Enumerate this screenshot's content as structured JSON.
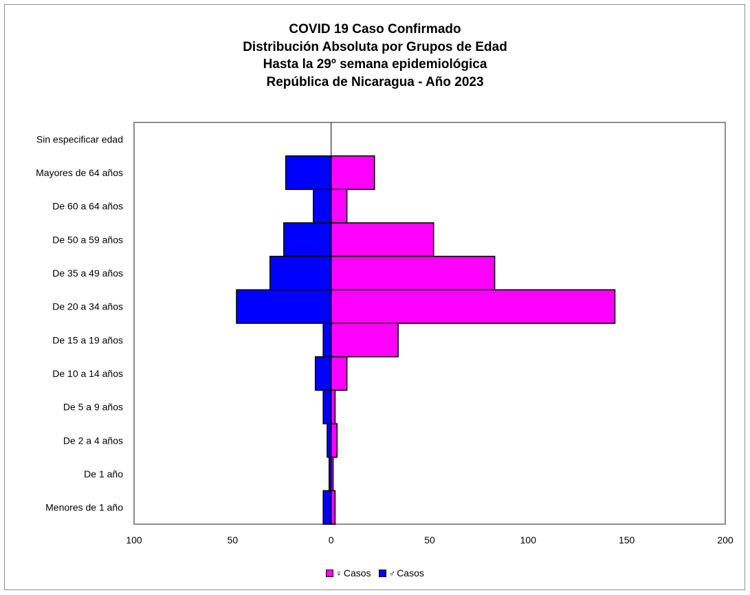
{
  "chart_data": {
    "type": "bar",
    "orientation": "horizontal",
    "title": [
      "COVID 19 Caso Confirmado",
      "Distribución Absoluta por Grupos de Edad",
      "Hasta la 29º semana epidemiológica",
      "República de Nicaragua - Año 2023"
    ],
    "categories": [
      "Sin especificar edad",
      "Mayores de 64 años",
      "De 60 a 64 años",
      "De 50 a 59 años",
      "De 35 a 49 años",
      "De 20 a 34 años",
      "De 15 a 19 años",
      "De 10 a 14 años",
      "De 5 a 9 años",
      "De 2 a 4 años",
      "De 1 año",
      "Menores de 1 año"
    ],
    "series": [
      {
        "name": "Casos",
        "symbol": "♀",
        "color": "#ff00ff",
        "side": "right",
        "values": [
          0,
          22,
          8,
          52,
          83,
          144,
          34,
          8,
          2,
          3,
          1,
          2
        ]
      },
      {
        "name": "Casos",
        "symbol": "♂",
        "color": "#0000ff",
        "side": "left",
        "values": [
          0,
          23,
          9,
          24,
          31,
          48,
          4,
          8,
          4,
          2,
          1,
          4
        ]
      }
    ],
    "x_ticks": [
      "100",
      "50",
      "0",
      "50",
      "100",
      "150",
      "200"
    ],
    "xlim": [
      -100,
      200
    ],
    "grid": false,
    "legend_position": "bottom"
  }
}
